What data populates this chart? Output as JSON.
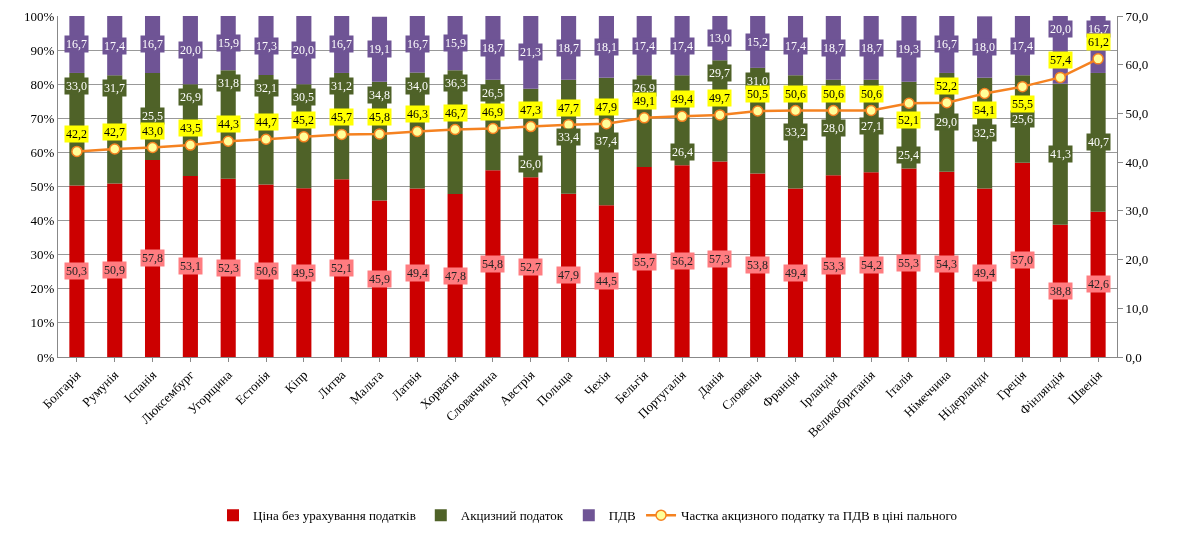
{
  "chart_data": {
    "type": "bar",
    "stacked": true,
    "grid": "y",
    "legend": "bottom",
    "marker": "circle",
    "categories": [
      "Болгарія",
      "Румунія",
      "Іспанія",
      "Люксембург",
      "Угорщина",
      "Естонія",
      "Кіпр",
      "Литва",
      "Мальта",
      "Латвія",
      "Хорватія",
      "Словаччина",
      "Австрія",
      "Польща",
      "Чехія",
      "Бельгія",
      "Португалія",
      "Данія",
      "Словенія",
      "Франція",
      "Ірландія",
      "Великобританія",
      "Італія",
      "Німеччина",
      "Нідерланди",
      "Греція",
      "Фінляндія",
      "Швеція"
    ],
    "series": [
      {
        "name": "Ціна без урахування податків",
        "color": "#cc0000",
        "values": [
          50.3,
          50.9,
          57.8,
          53.1,
          52.3,
          50.6,
          49.5,
          52.1,
          45.9,
          49.4,
          47.8,
          54.8,
          52.7,
          47.9,
          44.5,
          55.7,
          56.2,
          57.3,
          53.8,
          49.4,
          53.3,
          54.2,
          55.3,
          54.3,
          49.4,
          57.0,
          38.8,
          42.6
        ],
        "value_labels": [
          "50,3",
          "50,9",
          "57,8",
          "53,1",
          "52,3",
          "50,6",
          "49,5",
          "52,1",
          "45,9",
          "49,4",
          "47,8",
          "54,8",
          "52,7",
          "47,9",
          "44,5",
          "55,7",
          "56,2",
          "57,3",
          "53,8",
          "49,4",
          "53,3",
          "54,2",
          "55,3",
          "54,3",
          "49,4",
          "57,0",
          "38,8",
          "42,6"
        ]
      },
      {
        "name": "Акцизний податок",
        "color": "#4f6228",
        "values": [
          33.0,
          31.7,
          25.5,
          26.9,
          31.8,
          32.1,
          30.5,
          31.2,
          34.8,
          34.0,
          36.3,
          26.5,
          26.0,
          33.4,
          37.4,
          26.9,
          26.4,
          29.7,
          31.0,
          33.2,
          28.0,
          27.1,
          25.4,
          29.0,
          32.5,
          25.6,
          41.3,
          40.7
        ],
        "value_labels": [
          "33,0",
          "31,7",
          "25,5",
          "26,9",
          "31,8",
          "32,1",
          "30,5",
          "31,2",
          "34,8",
          "34,0",
          "36,3",
          "26,5",
          "26,0",
          "33,4",
          "37,4",
          "26,9",
          "26,4",
          "29,7",
          "31,0",
          "33,2",
          "28,0",
          "27,1",
          "25,4",
          "29,0",
          "32,5",
          "25,6",
          "41,3",
          "40,7"
        ]
      },
      {
        "name": "ПДВ",
        "color": "#6f5495",
        "values": [
          16.7,
          17.4,
          16.7,
          20.0,
          15.9,
          17.3,
          20.0,
          16.7,
          19.1,
          16.7,
          15.9,
          18.7,
          21.3,
          18.7,
          18.1,
          17.4,
          17.4,
          13.0,
          15.2,
          17.4,
          18.7,
          18.7,
          19.3,
          16.7,
          18.0,
          17.4,
          20.0,
          16.7
        ],
        "value_labels": [
          "16,7",
          "17,4",
          "16,7",
          "20,0",
          "15,9",
          "17,3",
          "20,0",
          "16,7",
          "19,1",
          "16,7",
          "15,9",
          "18,7",
          "21,3",
          "18,7",
          "18,1",
          "17,4",
          "17,4",
          "13,0",
          "15,2",
          "17,4",
          "18,7",
          "18,7",
          "19,3",
          "16,7",
          "18,0",
          "17,4",
          "20,0",
          "16,7"
        ]
      },
      {
        "name": "Частка акцизного податку та ПДВ в ціні пального",
        "type": "line",
        "axis": "y2",
        "color": "#f58220",
        "values": [
          42.2,
          42.7,
          43.0,
          43.5,
          44.3,
          44.7,
          45.2,
          45.7,
          45.8,
          46.3,
          46.7,
          46.9,
          47.3,
          47.7,
          47.9,
          49.1,
          49.4,
          49.7,
          50.5,
          50.6,
          50.6,
          50.6,
          52.1,
          52.2,
          54.1,
          55.5,
          57.4,
          61.2
        ],
        "value_labels": [
          "42,2",
          "42,7",
          "43,0",
          "43,5",
          "44,3",
          "44,7",
          "45,2",
          "45,7",
          "45,8",
          "46,3",
          "46,7",
          "46,9",
          "47,3",
          "47,7",
          "47,9",
          "49,1",
          "49,4",
          "49,7",
          "50,5",
          "50,6",
          "50,6",
          "50,6",
          "52,1",
          "52,2",
          "54,1",
          "55,5",
          "57,4",
          "61,2"
        ]
      }
    ],
    "ylim": [
      0,
      100
    ],
    "yticks": [
      {
        "value": 0,
        "label": "0%"
      },
      {
        "value": 10,
        "label": "10%"
      },
      {
        "value": 20,
        "label": "20%"
      },
      {
        "value": 30,
        "label": "30%"
      },
      {
        "value": 40,
        "label": "40%"
      },
      {
        "value": 50,
        "label": "50%"
      },
      {
        "value": 60,
        "label": "60%"
      },
      {
        "value": 70,
        "label": "70%"
      },
      {
        "value": 80,
        "label": "80%"
      },
      {
        "value": 90,
        "label": "90%"
      },
      {
        "value": 100,
        "label": "100%"
      }
    ],
    "y2lim": [
      0,
      70
    ],
    "y2ticks": [
      {
        "value": 0,
        "label": "0,0"
      },
      {
        "value": 10,
        "label": "10,0"
      },
      {
        "value": 20,
        "label": "20,0"
      },
      {
        "value": 30,
        "label": "30,0"
      },
      {
        "value": 40,
        "label": "40,0"
      },
      {
        "value": 50,
        "label": "50,0"
      },
      {
        "value": 60,
        "label": "60,0"
      },
      {
        "value": 70,
        "label": "70,0"
      }
    ]
  }
}
